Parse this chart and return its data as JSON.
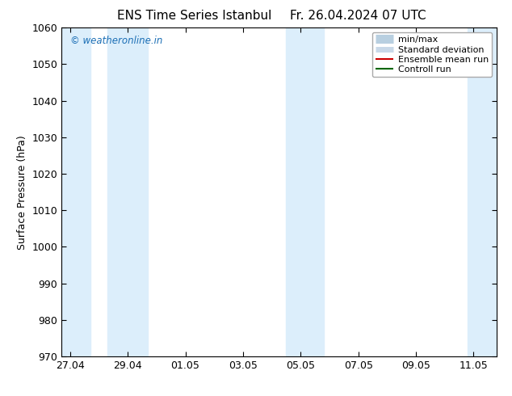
{
  "title_left": "ENS Time Series Istanbul",
  "title_right": "Fr. 26.04.2024 07 UTC",
  "ylabel": "Surface Pressure (hPa)",
  "ylim": [
    970,
    1060
  ],
  "yticks": [
    970,
    980,
    990,
    1000,
    1010,
    1020,
    1030,
    1040,
    1050,
    1060
  ],
  "x_tick_labels": [
    "27.04",
    "29.04",
    "01.05",
    "03.05",
    "05.05",
    "07.05",
    "09.05",
    "11.05"
  ],
  "x_tick_positions": [
    0,
    2,
    4,
    6,
    8,
    10,
    12,
    14
  ],
  "xlim": [
    -0.3,
    14.8
  ],
  "shaded_columns": [
    {
      "x_start": -0.3,
      "x_end": 0.7,
      "color": "#dceefb"
    },
    {
      "x_start": 1.3,
      "x_end": 2.7,
      "color": "#dceefb"
    },
    {
      "x_start": 7.5,
      "x_end": 8.8,
      "color": "#dceefb"
    },
    {
      "x_start": 13.8,
      "x_end": 14.8,
      "color": "#dceefb"
    }
  ],
  "watermark": "© weatheronline.in",
  "watermark_color": "#1a6eb5",
  "legend_items": [
    {
      "label": "min/max",
      "color": "#b8cfe0",
      "lw": 8
    },
    {
      "label": "Standard deviation",
      "color": "#c8d8e8",
      "lw": 5
    },
    {
      "label": "Ensemble mean run",
      "color": "#cc0000",
      "lw": 1.5
    },
    {
      "label": "Controll run",
      "color": "#006600",
      "lw": 1.5
    }
  ],
  "bg_color": "#ffffff",
  "plot_bg_color": "#ffffff",
  "border_color": "#000000",
  "title_fontsize": 11,
  "ylabel_fontsize": 9,
  "tick_fontsize": 9,
  "legend_fontsize": 8
}
